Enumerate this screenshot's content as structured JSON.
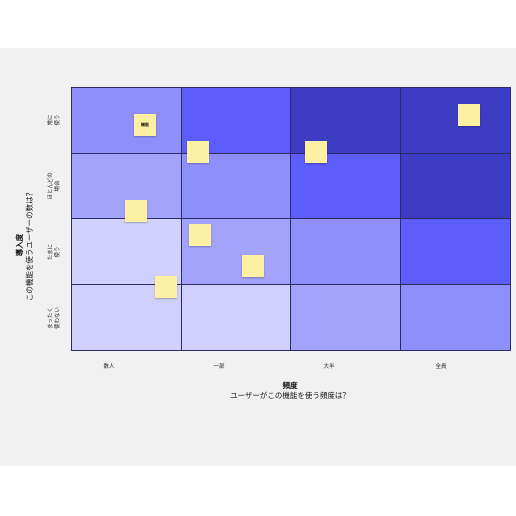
{
  "axes": {
    "y_title": "導入度",
    "y_subtitle": "この機能を使うユーザーの数は？",
    "x_title": "頻度",
    "x_subtitle": "ユーザーがこの機能を使う頻度は？"
  },
  "rows": [
    "常に\n使う",
    "ほとんどの\n場合",
    "たまに\n使う",
    "まったく\n使わない"
  ],
  "columns": [
    "数人",
    "一部",
    "大半",
    "全員"
  ],
  "cell_shades": [
    [
      "mid",
      "strong",
      "dark",
      "dark"
    ],
    [
      "light",
      "mid",
      "strong",
      "dark"
    ],
    [
      "lighter",
      "light",
      "mid",
      "strong"
    ],
    [
      "lighter",
      "lighter",
      "light",
      "mid"
    ]
  ],
  "colors": {
    "lighter": "#d0d0fd",
    "light": "#a3a3fb",
    "mid": "#8f8ffb",
    "strong": "#5d5dfb",
    "dark": "#3d3dc4",
    "sticky": "#fdf0a2"
  },
  "sticky_notes": [
    {
      "text": "機能"
    },
    {
      "text": ""
    },
    {
      "text": ""
    },
    {
      "text": ""
    },
    {
      "text": ""
    },
    {
      "text": ""
    },
    {
      "text": ""
    },
    {
      "text": ""
    }
  ]
}
